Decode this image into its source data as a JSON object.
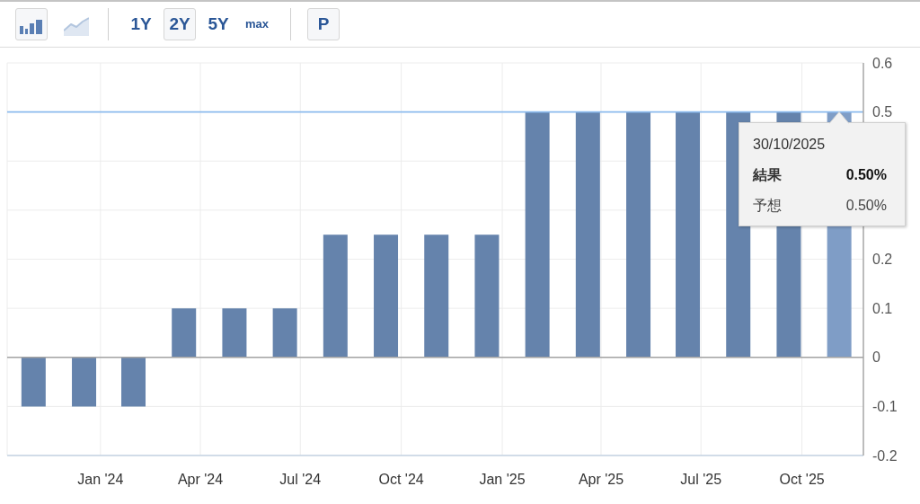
{
  "chart_data": {
    "type": "bar",
    "x": [
      "2023-11-01",
      "2023-12-17",
      "2024-01-31",
      "2024-03-17",
      "2024-05-02",
      "2024-06-17",
      "2024-08-02",
      "2024-09-17",
      "2024-11-02",
      "2024-12-18",
      "2025-02-02",
      "2025-03-20",
      "2025-05-05",
      "2025-06-19",
      "2025-08-04",
      "2025-09-19",
      "2025-11-04"
    ],
    "values": [
      -0.1,
      -0.1,
      -0.1,
      0.1,
      0.1,
      0.1,
      0.25,
      0.25,
      0.25,
      0.25,
      0.5,
      0.5,
      0.5,
      0.5,
      0.5,
      0.5,
      0.5
    ],
    "colors": [
      "#6583ac",
      "#6583ac",
      "#6583ac",
      "#6583ac",
      "#6583ac",
      "#6583ac",
      "#6583ac",
      "#6583ac",
      "#6583ac",
      "#6583ac",
      "#6583ac",
      "#6583ac",
      "#6583ac",
      "#6583ac",
      "#6583ac",
      "#6583ac",
      "#7f9dc6"
    ],
    "xlim": [
      "2023-10-08",
      "2025-11-26"
    ],
    "xticks": [
      {
        "value": "2024-01-01",
        "label": "Jan '24"
      },
      {
        "value": "2024-04-01",
        "label": "Apr '24"
      },
      {
        "value": "2024-07-01",
        "label": "Jul '24"
      },
      {
        "value": "2024-10-01",
        "label": "Oct '24"
      },
      {
        "value": "2025-01-01",
        "label": "Jan '25"
      },
      {
        "value": "2025-04-01",
        "label": "Apr '25"
      },
      {
        "value": "2025-07-01",
        "label": "Jul '25"
      },
      {
        "value": "2025-10-01",
        "label": "Oct '25"
      }
    ],
    "ylim": [
      -0.2,
      0.6
    ],
    "yticks": [
      -0.2,
      -0.1,
      0,
      0.1,
      0.2,
      {
        "value": 0.3,
        "label": null
      },
      {
        "value": 0.4,
        "label": null
      },
      0.5,
      0.6
    ],
    "grid": true,
    "ref_lines": [
      {
        "axis": "y",
        "value": 0,
        "color": "#a3a3a3"
      },
      {
        "axis": "y",
        "value": 0.5,
        "color": "#8dbbee"
      }
    ],
    "annotations": [
      "1Y",
      "2Y",
      "5Y",
      "max",
      "P",
      "30/10/2025",
      "結果",
      "0.50%",
      "予想",
      "0.50%"
    ]
  }
}
